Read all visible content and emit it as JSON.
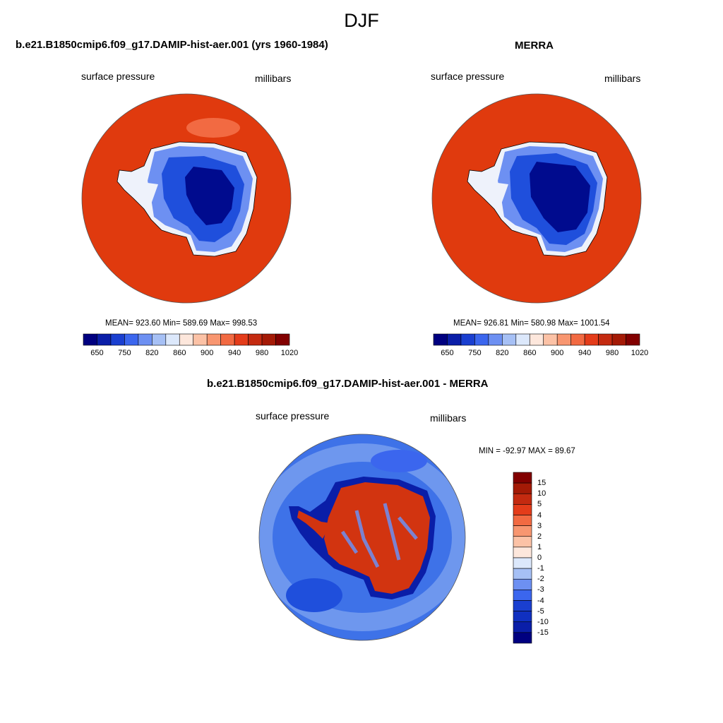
{
  "figure": {
    "title": "DJF"
  },
  "panels": {
    "model": {
      "title": "b.e21.B1850cmip6.f09_g17.DAMIP-hist-aer.001 (yrs 1960-1984)",
      "left_label": "surface pressure",
      "right_label": "millibars",
      "stats": "MEAN= 923.60  Min= 589.69  Max= 998.53"
    },
    "obs": {
      "title": "MERRA",
      "left_label": "surface pressure",
      "right_label": "millibars",
      "stats": "MEAN= 926.81  Min= 580.98  Max= 1001.54"
    },
    "diff": {
      "title": "b.e21.B1850cmip6.f09_g17.DAMIP-hist-aer.001 - MERRA",
      "left_label": "surface pressure",
      "right_label": "millibars",
      "stats": "MIN = -92.97 MAX =  89.67"
    }
  },
  "colorbars": {
    "abs": {
      "tick_labels": [
        "650",
        "750",
        "820",
        "860",
        "900",
        "940",
        "980",
        "1020"
      ],
      "colors": [
        "#000080",
        "#0a1ea8",
        "#1a3fd0",
        "#3b66ee",
        "#6d90f2",
        "#a6c0f5",
        "#dce8fb",
        "#fde7dc",
        "#fcc2a6",
        "#f89670",
        "#f26a42",
        "#e43c1a",
        "#c42a10",
        "#a41a06",
        "#820000"
      ]
    },
    "diff": {
      "tick_labels": [
        "15",
        "10",
        "5",
        "4",
        "3",
        "2",
        "1",
        "0",
        "-1",
        "-2",
        "-3",
        "-4",
        "-5",
        "-10",
        "-15"
      ],
      "colors": [
        "#820000",
        "#a41a06",
        "#c42a10",
        "#e43c1a",
        "#f26a42",
        "#f89670",
        "#fcc2a6",
        "#fde7dc",
        "#dce8fb",
        "#a6c0f5",
        "#6d90f2",
        "#3b66ee",
        "#1a3fd0",
        "#1030c0",
        "#0a1ea8",
        "#000080"
      ]
    }
  },
  "map_colors": {
    "ocean_abs": "#e03a0e",
    "ocean_diff": "#3e72e8",
    "ocean_diff_light": "#8fb0f2",
    "land_high": "#000b8e",
    "land_mid": "#1f4fdc",
    "land_low": "#6d90f2",
    "coast_white": "#eef2fb",
    "diff_pos": "#d23410",
    "diff_neg": "#0a1ea8"
  }
}
